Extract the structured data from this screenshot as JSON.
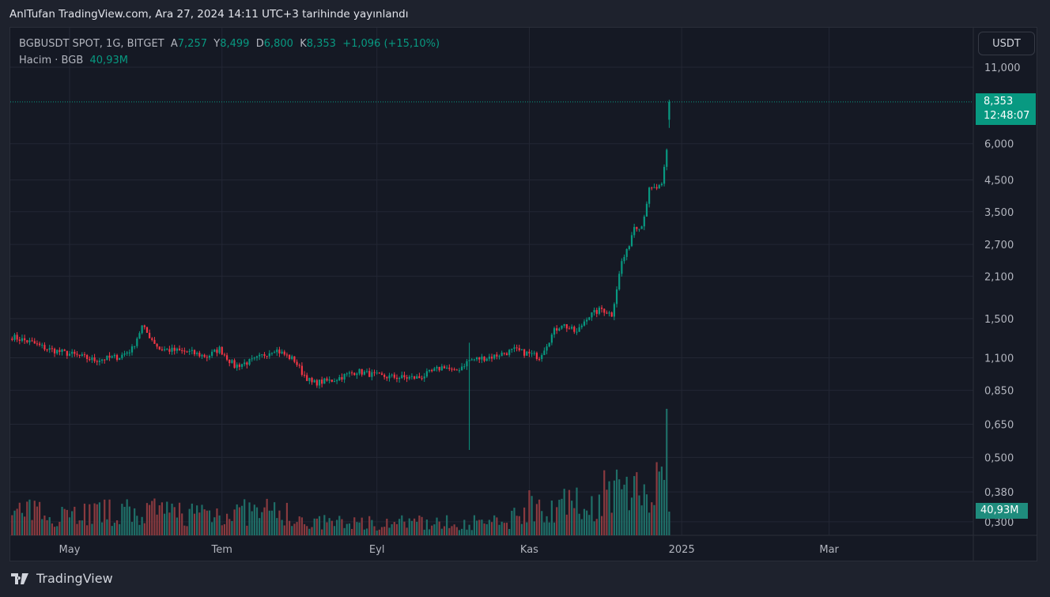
{
  "published": "AnlTufan TradingView.com, Ara 27, 2024 14:11 UTC+3 tarihinde yayınlandı",
  "legend": {
    "symbol": "BGBUSDT SPOT, 1G, BITGET",
    "open_label": "A",
    "open": "7,257",
    "high_label": "Y",
    "high": "8,499",
    "low_label": "D",
    "low": "6,800",
    "close_label": "K",
    "close": "8,353",
    "change": "+1,096 (+15,10%)",
    "volume_label": "Hacim · BGB",
    "volume": "40,93M"
  },
  "currency_button": "USDT",
  "last_price": {
    "price": "8,353",
    "countdown": "12:48:07"
  },
  "volume_tag": "40,93M",
  "brand": "TradingView",
  "colors": {
    "up": "#089981",
    "down": "#f23645",
    "up_vol": "#1f6f68",
    "down_vol": "#8a3a3f",
    "grid": "#232734"
  },
  "chart_data": {
    "type": "candlestick",
    "scale": "log",
    "y_ticks": [
      {
        "label": "11,000",
        "value": 11.0
      },
      {
        "label": "6,000",
        "value": 6.0
      },
      {
        "label": "4,500",
        "value": 4.5
      },
      {
        "label": "3,500",
        "value": 3.5
      },
      {
        "label": "2,700",
        "value": 2.7
      },
      {
        "label": "2,100",
        "value": 2.1
      },
      {
        "label": "1,500",
        "value": 1.5
      },
      {
        "label": "1,100",
        "value": 1.1
      },
      {
        "label": "0,850",
        "value": 0.85
      },
      {
        "label": "0,650",
        "value": 0.65
      },
      {
        "label": "0,500",
        "value": 0.5
      },
      {
        "label": "0,380",
        "value": 0.38
      },
      {
        "label": "0,300",
        "value": 0.3
      }
    ],
    "x_ticks": [
      {
        "label": "May",
        "day": 23
      },
      {
        "label": "Tem",
        "day": 84
      },
      {
        "label": "Eyl",
        "day": 146
      },
      {
        "label": "Kas",
        "day": 207
      },
      {
        "label": "2025",
        "day": 268
      },
      {
        "label": "Mar",
        "day": 327
      }
    ],
    "x_unit": "days since 2024-04-08",
    "close_waypoints": [
      [
        0,
        1.3
      ],
      [
        8,
        1.24
      ],
      [
        14,
        1.18
      ],
      [
        24,
        1.13
      ],
      [
        33,
        1.08
      ],
      [
        43,
        1.11
      ],
      [
        48,
        1.18
      ],
      [
        52,
        1.41
      ],
      [
        59,
        1.18
      ],
      [
        71,
        1.15
      ],
      [
        78,
        1.11
      ],
      [
        83,
        1.18
      ],
      [
        89,
        1.03
      ],
      [
        97,
        1.08
      ],
      [
        105,
        1.18
      ],
      [
        113,
        1.08
      ],
      [
        116,
        0.98
      ],
      [
        120,
        0.9
      ],
      [
        128,
        0.92
      ],
      [
        138,
        0.99
      ],
      [
        147,
        0.95
      ],
      [
        157,
        0.94
      ],
      [
        163,
        0.94
      ],
      [
        173,
        1.03
      ],
      [
        177,
        0.98
      ],
      [
        183,
        1.08
      ],
      [
        192,
        1.11
      ],
      [
        201,
        1.17
      ],
      [
        211,
        1.11
      ],
      [
        217,
        1.36
      ],
      [
        220,
        1.44
      ],
      [
        226,
        1.34
      ],
      [
        230,
        1.52
      ],
      [
        236,
        1.62
      ],
      [
        240,
        1.55
      ],
      [
        244,
        2.36
      ],
      [
        246,
        2.54
      ],
      [
        249,
        3.13
      ],
      [
        252,
        3.13
      ],
      [
        255,
        4.15
      ],
      [
        260,
        4.27
      ],
      [
        262,
        5.67
      ],
      [
        263,
        8.353
      ]
    ],
    "wick_events": [
      {
        "day": 183,
        "low": 0.53,
        "high": 1.24
      }
    ],
    "last_candle": {
      "open": 7.257,
      "high": 8.499,
      "low": 6.8,
      "close": 8.353,
      "volume_m": 40.93
    },
    "volume_peak_day": 262
  }
}
